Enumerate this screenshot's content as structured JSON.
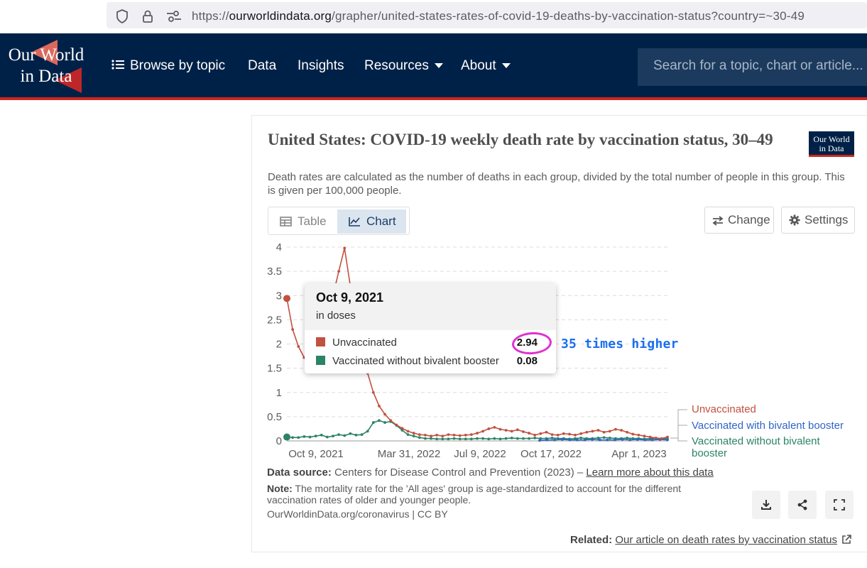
{
  "browser": {
    "url_domain": "ourworldindata.org",
    "url_prefix": "https://",
    "url_path": "/grapher/united-states-rates-of-covid-19-deaths-by-vaccination-status?country=~30-49"
  },
  "header": {
    "logo_line1": "Our World",
    "logo_line2": "in Data",
    "nav": [
      {
        "label": "Browse by topic"
      },
      {
        "label": "Data"
      },
      {
        "label": "Insights"
      },
      {
        "label": "Resources"
      },
      {
        "label": "About"
      }
    ],
    "search_placeholder": "Search for a topic, chart or article..."
  },
  "card": {
    "title": "United States: COVID-19 weekly death rate by vaccination status, 30–49",
    "badge_line1": "Our World",
    "badge_line2": "in Data",
    "subtitle": "Death rates are calculated as the number of deaths in each group, divided by the total number of people in this group. This is given per 100,000 people.",
    "tabs": [
      {
        "label": "Table"
      },
      {
        "label": "Chart"
      }
    ],
    "change_label": "Change",
    "settings_label": "Settings"
  },
  "tooltip": {
    "title": "Oct 9, 2021",
    "subtitle": "in doses",
    "rows": [
      {
        "label": "Unvaccinated",
        "value": "2.94",
        "color": "#c15140"
      },
      {
        "label": "Vaccinated without bivalent booster",
        "value": "0.08",
        "color": "#2c8465"
      }
    ]
  },
  "annotation": "35 times higher",
  "chart_data": {
    "type": "line",
    "ylim": [
      0,
      4
    ],
    "yticks": [
      "4",
      "3.5",
      "3",
      "2.5",
      "2",
      "1.5",
      "1",
      "0.5",
      "0"
    ],
    "xticks": [
      "Oct 9, 2021",
      "Mar 31, 2022",
      "Jul 9, 2022",
      "Oct 17, 2022",
      "Apr 1, 2023"
    ],
    "series": [
      {
        "name": "Unvaccinated",
        "color": "#c15140",
        "values": [
          2.94,
          2.3,
          1.95,
          1.72,
          1.8,
          1.9,
          2.3,
          2.6,
          3.0,
          3.5,
          3.98,
          3.2,
          2.6,
          2.0,
          1.4,
          1.0,
          0.72,
          0.55,
          0.42,
          0.33,
          0.26,
          0.2,
          0.16,
          0.13,
          0.12,
          0.1,
          0.12,
          0.1,
          0.13,
          0.12,
          0.11,
          0.12,
          0.13,
          0.16,
          0.2,
          0.25,
          0.28,
          0.24,
          0.22,
          0.2,
          0.23,
          0.19,
          0.16,
          0.12,
          0.15,
          0.18,
          0.13,
          0.12,
          0.15,
          0.14,
          0.12,
          0.15,
          0.18,
          0.2,
          0.22,
          0.18,
          0.2,
          0.24,
          0.22,
          0.18,
          0.14,
          0.12,
          0.1,
          0.08,
          0.06,
          0.05,
          0.08
        ]
      },
      {
        "name": "Vaccinated with bivalent booster",
        "color": "#2f65c7",
        "values": [
          0.01,
          0.02,
          0.02,
          0.03,
          0.02,
          0.02,
          0.02,
          0.03,
          0.02,
          0.02,
          0.02,
          0.03,
          0.02,
          0.03,
          0.02,
          0.02,
          0.03,
          0.02
        ]
      },
      {
        "name": "Vaccinated without bivalent booster",
        "color": "#2c8465",
        "values": [
          0.08,
          0.07,
          0.07,
          0.09,
          0.08,
          0.1,
          0.12,
          0.08,
          0.1,
          0.13,
          0.11,
          0.15,
          0.12,
          0.13,
          0.2,
          0.38,
          0.42,
          0.38,
          0.4,
          0.32,
          0.22,
          0.13,
          0.1,
          0.07,
          0.05,
          0.05,
          0.04,
          0.04,
          0.04,
          0.05,
          0.04,
          0.04,
          0.04,
          0.05,
          0.05,
          0.04,
          0.05,
          0.04,
          0.05,
          0.06,
          0.05,
          0.05,
          0.05,
          0.06,
          0.05,
          0.05,
          0.06,
          0.05,
          0.05,
          0.04,
          0.05,
          0.06,
          0.05,
          0.05,
          0.06,
          0.07,
          0.06,
          0.05,
          0.05,
          0.06,
          0.05,
          0.05,
          0.04,
          0.05,
          0.05,
          0.04,
          0.05
        ]
      }
    ]
  },
  "legend": {
    "unvax": "Unvaccinated",
    "biv": "Vaccinated with bivalent booster",
    "nobiv_1": "Vaccinated without bivalent",
    "nobiv_2": "booster"
  },
  "footer": {
    "source_label": "Data source:",
    "source_text": "Centers for Disease Control and Prevention (2023) –",
    "source_link": "Learn more about this data",
    "note_label": "Note:",
    "note_line1": "The mortality rate for the 'All ages' group is age-standardized to account for the different",
    "note_line2": "vaccination rates of older and younger people.",
    "license": "OurWorldinData.org/coronavirus | CC BY",
    "related_label": "Related:",
    "related_link": "Our article on death rates by vaccination status"
  }
}
